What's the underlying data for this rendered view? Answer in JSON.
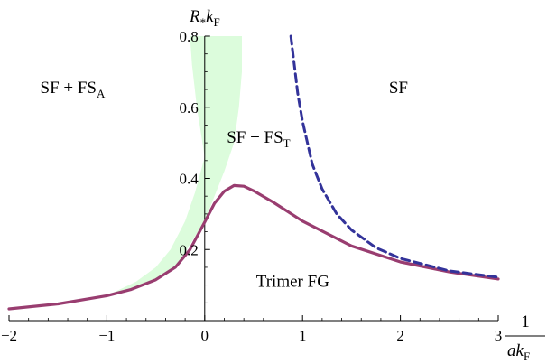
{
  "chart_data": {
    "type": "line",
    "xlim": [
      -2,
      3
    ],
    "ylim": [
      0,
      0.8
    ],
    "x_ticks": [
      -2,
      -1,
      0,
      1,
      2,
      3
    ],
    "x_tick_labels": [
      "−2",
      "−1",
      "0",
      "1",
      "2",
      "3"
    ],
    "y_ticks": [
      0.2,
      0.4,
      0.6,
      0.8
    ],
    "y_tick_labels": [
      "0.2",
      "0.4",
      "0.6",
      "0.8"
    ],
    "ylabel": {
      "main": "R",
      "sub1": "*",
      "mid": "k",
      "sub2": "F"
    },
    "xlabel": {
      "numerator": "1",
      "main": "ak",
      "sub": "F"
    },
    "grid": false,
    "colors": {
      "solid": "#993d70",
      "dashed": "#33339a",
      "band": "#dcfcdc"
    },
    "series": [
      {
        "style": "solid",
        "x": [
          -2,
          -1.5,
          -1,
          -0.75,
          -0.5,
          -0.3,
          -0.15,
          0,
          0.1,
          0.2,
          0.3,
          0.4,
          0.5,
          0.7,
          1,
          1.5,
          2,
          2.5,
          3
        ],
        "y": [
          0.033,
          0.047,
          0.07,
          0.088,
          0.115,
          0.15,
          0.2,
          0.277,
          0.33,
          0.364,
          0.38,
          0.378,
          0.365,
          0.333,
          0.28,
          0.21,
          0.165,
          0.137,
          0.117
        ]
      },
      {
        "style": "dashed",
        "x": [
          0.88,
          0.95,
          1,
          1.1,
          1.2,
          1.35,
          1.5,
          1.75,
          2,
          2.5,
          3
        ],
        "y": [
          0.8,
          0.64,
          0.56,
          0.44,
          0.37,
          0.3,
          0.255,
          0.205,
          0.175,
          0.14,
          0.122
        ]
      }
    ],
    "band": {
      "upper": {
        "x": [
          -1.0,
          -0.7,
          -0.5,
          -0.35,
          -0.2,
          -0.1,
          0,
          -0.08,
          -0.13,
          -0.15
        ],
        "y": [
          0.07,
          0.11,
          0.15,
          0.2,
          0.28,
          0.36,
          0.46,
          0.6,
          0.72,
          0.8
        ]
      },
      "lower": {
        "x": [
          0.38,
          0.38,
          0.35,
          0.3,
          0.2,
          0.1,
          0,
          -0.3,
          -0.6,
          -0.8,
          -1.0
        ],
        "y": [
          0.8,
          0.7,
          0.6,
          0.5,
          0.42,
          0.35,
          0.28,
          0.15,
          0.1,
          0.08,
          0.07
        ]
      }
    },
    "annotations": [
      {
        "key": "sf_fsa",
        "main": "SF + FS",
        "sub": "A",
        "x": -1.35,
        "y": 0.64
      },
      {
        "key": "sf",
        "main": "SF",
        "sub": "",
        "x": 1.98,
        "y": 0.64
      },
      {
        "key": "sf_fst",
        "main": "SF + FS",
        "sub": "T",
        "x": 0.55,
        "y": 0.5
      },
      {
        "key": "trimer",
        "main": "Trimer FG",
        "sub": "",
        "x": 0.9,
        "y": 0.095
      }
    ]
  }
}
